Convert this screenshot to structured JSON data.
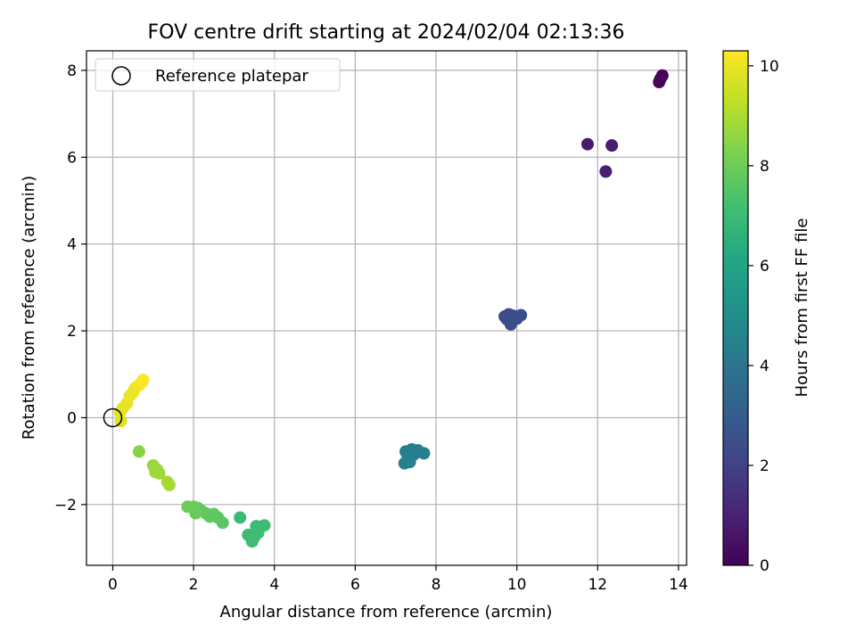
{
  "chart_data": {
    "type": "scatter",
    "title": "FOV centre drift starting at 2024/02/04 02:13:36",
    "xlabel": "Angular distance from reference (arcmin)",
    "ylabel": "Rotation from reference (arcmin)",
    "xlim": [
      -0.65,
      14.2
    ],
    "ylim": [
      -3.4,
      8.45
    ],
    "xticks": [
      0,
      2,
      4,
      6,
      8,
      10,
      12,
      14
    ],
    "yticks": [
      -2,
      0,
      2,
      4,
      6,
      8
    ],
    "grid": true,
    "legend": {
      "location": "top-left",
      "entries": [
        "Reference platepar"
      ]
    },
    "reference_point": {
      "name": "Reference platepar",
      "x": 0,
      "y": 0
    },
    "colorbar": {
      "label": "Hours from first FF file",
      "range": [
        0,
        10.3
      ],
      "ticks": [
        0,
        2,
        4,
        6,
        8,
        10
      ],
      "colormap": "viridis"
    },
    "points": [
      {
        "x": 13.6,
        "y": 7.88,
        "c": 0.05
      },
      {
        "x": 13.55,
        "y": 7.8,
        "c": 0.1
      },
      {
        "x": 13.52,
        "y": 7.73,
        "c": 0.15
      },
      {
        "x": 11.75,
        "y": 6.3,
        "c": 0.8
      },
      {
        "x": 12.35,
        "y": 6.27,
        "c": 0.85
      },
      {
        "x": 12.2,
        "y": 5.67,
        "c": 0.9
      },
      {
        "x": 9.7,
        "y": 2.33,
        "c": 2.3
      },
      {
        "x": 9.8,
        "y": 2.38,
        "c": 2.3
      },
      {
        "x": 9.9,
        "y": 2.35,
        "c": 2.35
      },
      {
        "x": 10.0,
        "y": 2.28,
        "c": 2.35
      },
      {
        "x": 10.1,
        "y": 2.36,
        "c": 2.4
      },
      {
        "x": 9.75,
        "y": 2.27,
        "c": 2.4
      },
      {
        "x": 9.85,
        "y": 2.15,
        "c": 2.45
      },
      {
        "x": 9.95,
        "y": 2.32,
        "c": 2.45
      },
      {
        "x": 7.25,
        "y": -0.78,
        "c": 4.3
      },
      {
        "x": 7.4,
        "y": -0.73,
        "c": 4.3
      },
      {
        "x": 7.55,
        "y": -0.75,
        "c": 4.35
      },
      {
        "x": 7.7,
        "y": -0.82,
        "c": 4.35
      },
      {
        "x": 7.3,
        "y": -0.92,
        "c": 4.4
      },
      {
        "x": 7.45,
        "y": -0.85,
        "c": 4.4
      },
      {
        "x": 7.22,
        "y": -1.05,
        "c": 4.45
      },
      {
        "x": 7.35,
        "y": -1.02,
        "c": 4.45
      },
      {
        "x": 3.15,
        "y": -2.3,
        "c": 6.9
      },
      {
        "x": 3.35,
        "y": -2.7,
        "c": 6.95
      },
      {
        "x": 3.45,
        "y": -2.85,
        "c": 7.0
      },
      {
        "x": 3.55,
        "y": -2.5,
        "c": 7.0
      },
      {
        "x": 3.6,
        "y": -2.65,
        "c": 7.05
      },
      {
        "x": 3.75,
        "y": -2.48,
        "c": 7.05
      },
      {
        "x": 3.5,
        "y": -2.75,
        "c": 7.1
      },
      {
        "x": 2.72,
        "y": -2.42,
        "c": 7.6
      },
      {
        "x": 2.6,
        "y": -2.3,
        "c": 7.65
      },
      {
        "x": 2.5,
        "y": -2.22,
        "c": 7.7
      },
      {
        "x": 2.4,
        "y": -2.28,
        "c": 7.7
      },
      {
        "x": 2.3,
        "y": -2.2,
        "c": 7.75
      },
      {
        "x": 2.2,
        "y": -2.15,
        "c": 7.8
      },
      {
        "x": 2.1,
        "y": -2.08,
        "c": 7.8
      },
      {
        "x": 2.05,
        "y": -2.2,
        "c": 7.85
      },
      {
        "x": 2.0,
        "y": -2.05,
        "c": 7.9
      },
      {
        "x": 1.85,
        "y": -2.05,
        "c": 7.95
      },
      {
        "x": 0.65,
        "y": -0.78,
        "c": 8.45
      },
      {
        "x": 1.0,
        "y": -1.1,
        "c": 8.7
      },
      {
        "x": 1.1,
        "y": -1.2,
        "c": 8.75
      },
      {
        "x": 1.15,
        "y": -1.28,
        "c": 8.8
      },
      {
        "x": 1.05,
        "y": -1.25,
        "c": 8.8
      },
      {
        "x": 1.35,
        "y": -1.48,
        "c": 8.9
      },
      {
        "x": 1.4,
        "y": -1.55,
        "c": 8.9
      },
      {
        "x": 0.2,
        "y": -0.08,
        "c": 9.8
      },
      {
        "x": 0.18,
        "y": 0.12,
        "c": 9.85
      },
      {
        "x": 0.25,
        "y": 0.22,
        "c": 9.9
      },
      {
        "x": 0.35,
        "y": 0.33,
        "c": 9.95
      },
      {
        "x": 0.42,
        "y": 0.5,
        "c": 10.0
      },
      {
        "x": 0.5,
        "y": 0.58,
        "c": 10.05
      },
      {
        "x": 0.55,
        "y": 0.68,
        "c": 10.1
      },
      {
        "x": 0.65,
        "y": 0.75,
        "c": 10.15
      },
      {
        "x": 0.72,
        "y": 0.82,
        "c": 10.2
      },
      {
        "x": 0.75,
        "y": 0.87,
        "c": 10.25
      }
    ]
  }
}
